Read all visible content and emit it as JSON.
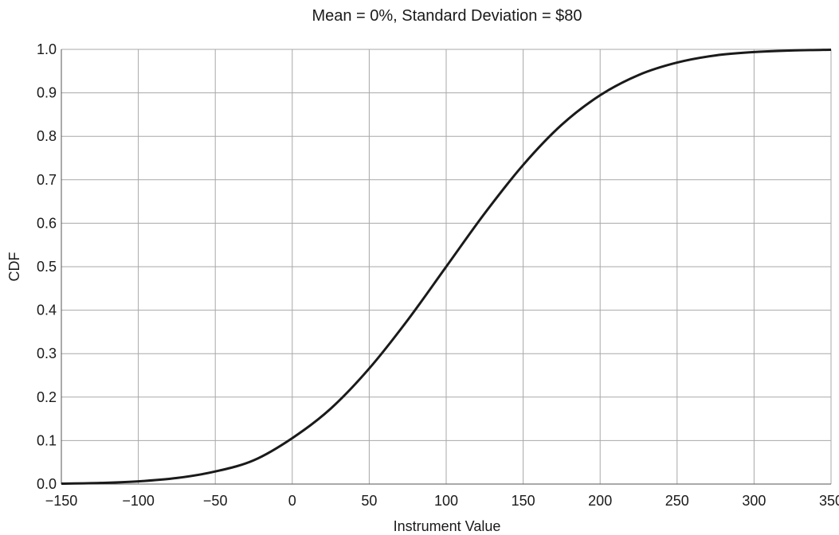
{
  "chart_data": {
    "type": "line",
    "title": "Mean = 0%, Standard Deviation = $80",
    "xlabel": "Instrument Value",
    "ylabel": "CDF",
    "xlim": [
      -150,
      350
    ],
    "ylim": [
      0.0,
      1.0
    ],
    "grid": true,
    "x_ticks": [
      -150,
      -100,
      -50,
      0,
      50,
      100,
      150,
      200,
      250,
      300,
      350
    ],
    "x_tick_labels": [
      "−150",
      "−100",
      "−50",
      "0",
      "50",
      "100",
      "150",
      "200",
      "250",
      "300",
      "350"
    ],
    "y_ticks": [
      0.0,
      0.1,
      0.2,
      0.3,
      0.4,
      0.5,
      0.6,
      0.7,
      0.8,
      0.9,
      1.0
    ],
    "y_tick_labels": [
      "0.0",
      "0.1",
      "0.2",
      "0.3",
      "0.4",
      "0.5",
      "0.6",
      "0.7",
      "0.8",
      "0.9",
      "1.0"
    ],
    "series": [
      {
        "x": [
          -150,
          -125,
          -100,
          -75,
          -50,
          -25,
          0,
          25,
          50,
          75,
          100,
          125,
          150,
          175,
          200,
          225,
          250,
          275,
          300,
          325,
          350
        ],
        "y": [
          0.0009,
          0.0025,
          0.0062,
          0.0139,
          0.0289,
          0.0547,
          0.1056,
          0.1736,
          0.2659,
          0.3773,
          0.5,
          0.6227,
          0.7341,
          0.8264,
          0.8944,
          0.941,
          0.9696,
          0.9861,
          0.9938,
          0.9975,
          0.9991
        ],
        "color": "#1a1a1a"
      }
    ]
  }
}
